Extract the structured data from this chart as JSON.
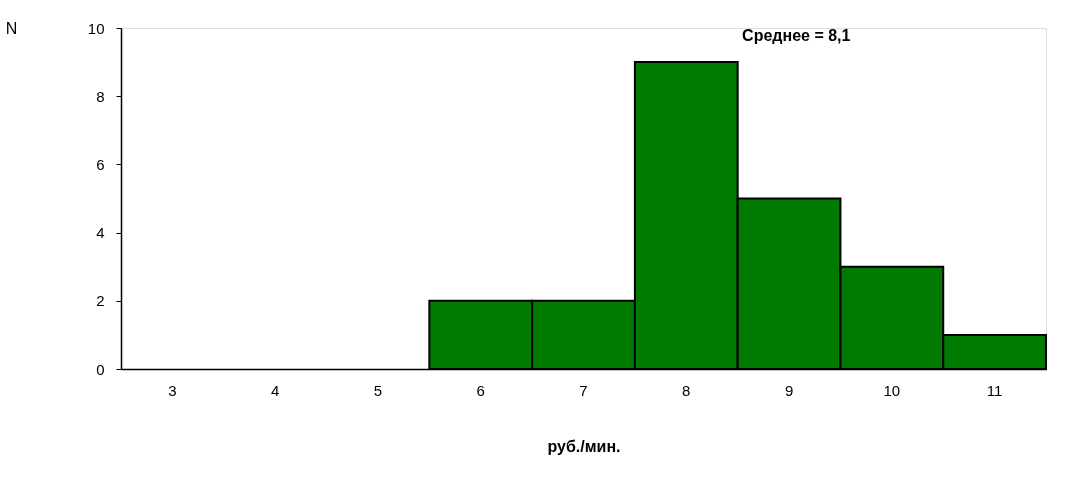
{
  "chart_data": {
    "type": "bar",
    "categories": [
      "3",
      "4",
      "5",
      "6",
      "7",
      "8",
      "9",
      "10",
      "11"
    ],
    "values": [
      0,
      0,
      0,
      2,
      2,
      9,
      5,
      3,
      1
    ],
    "color": "#007a00",
    "ylim": [
      0,
      10
    ],
    "yticks": [
      0,
      2,
      4,
      6,
      8,
      10
    ],
    "xlabel": "руб./мин.",
    "ylabel": "N",
    "annotations": [
      "Среднее = 8,1"
    ],
    "grid": false
  }
}
